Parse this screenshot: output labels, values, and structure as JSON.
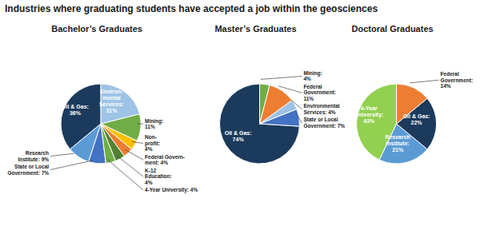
{
  "title": "Industries where graduating students have accepted a job within the geosciences",
  "chart_data": [
    {
      "type": "pie",
      "title": "Bachelor’s Graduates",
      "categories": [
        "Oil & Gas:\n36%",
        "Research\nInstitute: 9%",
        "State or Local\nGovernment: 7%",
        "4-Year University: 4%",
        "K-12\nEducation:\n4%",
        "Federal Govern-\nment: 4%",
        "Non-\nprofit:\n4%",
        "Mining:\n11%",
        "Environ-\nmental\nServices:\n21%"
      ],
      "values": [
        36,
        9,
        7,
        4,
        4,
        4,
        4,
        11,
        21
      ],
      "colors": [
        "#1b3a5c",
        "#5b9bd5",
        "#4472c4",
        "#70ad47",
        "#548235",
        "#ed7d31",
        "#ffc000",
        "#70ad47",
        "#9dc3e6"
      ]
    },
    {
      "type": "pie",
      "title": "Master’s Graduates",
      "categories": [
        "Oil & Gas:\n74%",
        "State or Local\nGovernment: 7%",
        "Environmental\nServices: 4%",
        "Federal\nGovernment:\n11%",
        "Mining:\n4%"
      ],
      "values": [
        74,
        7,
        4,
        11,
        4
      ],
      "colors": [
        "#1b3a5c",
        "#4472c4",
        "#9dc3e6",
        "#ed7d31",
        "#70ad47"
      ]
    },
    {
      "type": "pie",
      "title": "Doctoral Graduates",
      "categories": [
        "4-Year\nUniversity:\n43%",
        "Research\nInstitute:\n21%",
        "Oil & Gas:\n22%",
        "Federal\nGovernment:\n14%"
      ],
      "values": [
        43,
        21,
        22,
        14
      ],
      "colors": [
        "#92d050",
        "#5b9bd5",
        "#1b3a5c",
        "#ed7d31"
      ]
    }
  ]
}
